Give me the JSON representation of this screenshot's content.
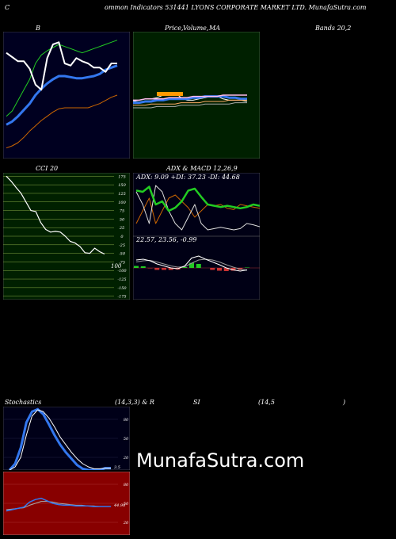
{
  "header": {
    "c_letter": "C",
    "title": "ommon  Indicators 531441 LYONS CORPORATE MARKET LTD. MunafaSutra.com"
  },
  "labels": {
    "bb": "B",
    "price_a": "Price,",
    "price_b": "Volume,",
    "price_c": "MA",
    "bands": "Bands 20,2",
    "cci": "CCI 20",
    "adx_macd": "ADX  & MACD 12,26,9",
    "stoch_a": "Stochastics",
    "stoch_b": "(14,3,3) & R",
    "stoch_c": "SI",
    "stoch_d": "(14,5",
    "stoch_e": ")"
  },
  "brand": "MunafaSutra.com",
  "colors": {
    "background": "#000000",
    "bb_panel": "#000020",
    "price_panel": "#002000",
    "cci_panel": "#002000",
    "stoch_panel": "#000018",
    "rsi_panel": "#880000",
    "green": "#22cc22",
    "blue": "#3377ee",
    "orange": "#cc6600",
    "white": "#ffffff"
  },
  "chart_data": [
    {
      "type": "line",
      "name_label": "Bollinger Bands 20,2",
      "series": [
        {
          "values": [
            80,
            76,
            72,
            72,
            65,
            50,
            45,
            75,
            88,
            90,
            70,
            68,
            75,
            72,
            70,
            66,
            66,
            62,
            70,
            70
          ]
        },
        {
          "values": [
            20,
            25,
            35,
            45,
            55,
            70,
            78,
            82,
            85,
            88,
            86,
            84,
            82,
            80,
            82,
            84,
            86,
            88,
            90,
            92
          ]
        },
        {
          "values": [
            12,
            15,
            20,
            26,
            32,
            40,
            46,
            51,
            55,
            58,
            58,
            57,
            56,
            56,
            57,
            58,
            60,
            64,
            66,
            68
          ]
        },
        {
          "values": [
            -10,
            -8,
            -5,
            0,
            6,
            11,
            16,
            20,
            24,
            27,
            28,
            28,
            28,
            28,
            28,
            30,
            32,
            35,
            38,
            40
          ]
        }
      ]
    },
    {
      "type": "line",
      "name_label": "Price, Volume, MA",
      "series": [
        {
          "values": [
            45,
            46,
            47,
            47,
            48,
            50,
            52,
            52,
            48,
            46,
            46,
            47,
            48,
            49,
            49,
            47,
            46,
            46,
            46,
            45
          ]
        },
        {
          "values": [
            44,
            44,
            45,
            45,
            46,
            46,
            47,
            47,
            47,
            47,
            48,
            48,
            49,
            49,
            49,
            49,
            48,
            48,
            47,
            47
          ]
        },
        {
          "values": [
            42,
            42,
            42,
            43,
            43,
            43,
            43,
            43,
            44,
            44,
            44,
            44,
            45,
            45,
            45,
            45,
            46,
            46,
            46,
            46
          ]
        },
        {
          "values": [
            46,
            46,
            47,
            47,
            47,
            47,
            48,
            48,
            48,
            48,
            49,
            49,
            49,
            49,
            49,
            50,
            50,
            50,
            50,
            50
          ]
        },
        {
          "values": [
            40,
            40,
            40,
            40,
            41,
            41,
            41,
            41,
            42,
            42,
            42,
            42,
            43,
            43,
            43,
            43,
            43,
            44,
            44,
            44
          ]
        }
      ]
    },
    {
      "type": "line",
      "name_label": "CCI 20",
      "ylabel_ticks": [
        175,
        150,
        125,
        100,
        75,
        50,
        25,
        0,
        -25,
        -50,
        -75,
        -100,
        -125,
        -150,
        -175
      ],
      "ylim": [
        -185,
        185
      ],
      "series": [
        {
          "values": [
            175,
            160,
            142,
            125,
            100,
            75,
            72,
            40,
            20,
            12,
            14,
            12,
            0,
            -15,
            -20,
            -30,
            -48,
            -50,
            -35,
            -45,
            -52
          ]
        }
      ],
      "value_label": "100"
    },
    {
      "type": "line",
      "name_label": "ADX & MACD 12,26,9",
      "adx_text": "ADX: 9.09  +DI: 37.23 -DI: 44.68",
      "macd_text": "22.57,  23.56,  -0.99",
      "adx": {
        "adx": [
          72,
          70,
          78,
          50,
          55,
          40,
          45,
          55,
          72,
          75,
          62,
          50,
          48,
          46,
          48,
          46,
          44,
          46,
          50,
          48
        ],
        "plus_di": [
          70,
          50,
          20,
          80,
          70,
          40,
          20,
          10,
          30,
          50,
          20,
          10,
          12,
          14,
          12,
          10,
          12,
          20,
          18,
          15
        ],
        "minus_di": [
          20,
          40,
          60,
          20,
          40,
          60,
          65,
          55,
          45,
          30,
          40,
          50,
          48,
          50,
          44,
          42,
          50,
          48,
          46,
          44
        ]
      },
      "macd": {
        "macd": [
          20,
          22,
          18,
          10,
          5,
          0,
          -2,
          5,
          25,
          30,
          22,
          15,
          8,
          0,
          -5,
          -8,
          -5
        ],
        "signal": [
          15,
          18,
          19,
          15,
          10,
          5,
          2,
          3,
          12,
          20,
          22,
          20,
          15,
          8,
          2,
          -3,
          -6
        ],
        "histogram": [
          5,
          4,
          -1,
          -5,
          -5,
          -5,
          -4,
          2,
          13,
          10,
          0,
          -5,
          -7,
          -8,
          -7,
          -5,
          1
        ]
      }
    },
    {
      "type": "line",
      "name_label": "Stochastics (14,3,3)",
      "ylabel_ticks": [
        80,
        50,
        20
      ],
      "series": [
        {
          "values": [
            0,
            10,
            35,
            75,
            92,
            96,
            88,
            72,
            55,
            40,
            28,
            18,
            8,
            2,
            0,
            0,
            0,
            3,
            3
          ]
        },
        {
          "values": [
            0,
            5,
            20,
            55,
            85,
            95,
            92,
            82,
            68,
            52,
            40,
            28,
            18,
            10,
            5,
            2,
            2,
            3,
            3
          ]
        }
      ],
      "value_label": "3.5"
    },
    {
      "type": "line",
      "name_label": "RSI 14",
      "ylabel_ticks": [
        80,
        50,
        20
      ],
      "series": [
        {
          "values": [
            38,
            40,
            42,
            44,
            52,
            56,
            58,
            54,
            50,
            48,
            47,
            47,
            46,
            46,
            46,
            45,
            45,
            45,
            45
          ]
        },
        {
          "values": [
            40,
            41,
            42,
            43,
            47,
            50,
            53,
            53,
            52,
            50,
            49,
            48,
            47,
            47,
            46,
            46,
            45,
            45,
            45
          ]
        }
      ],
      "value_label": "44.98"
    }
  ]
}
